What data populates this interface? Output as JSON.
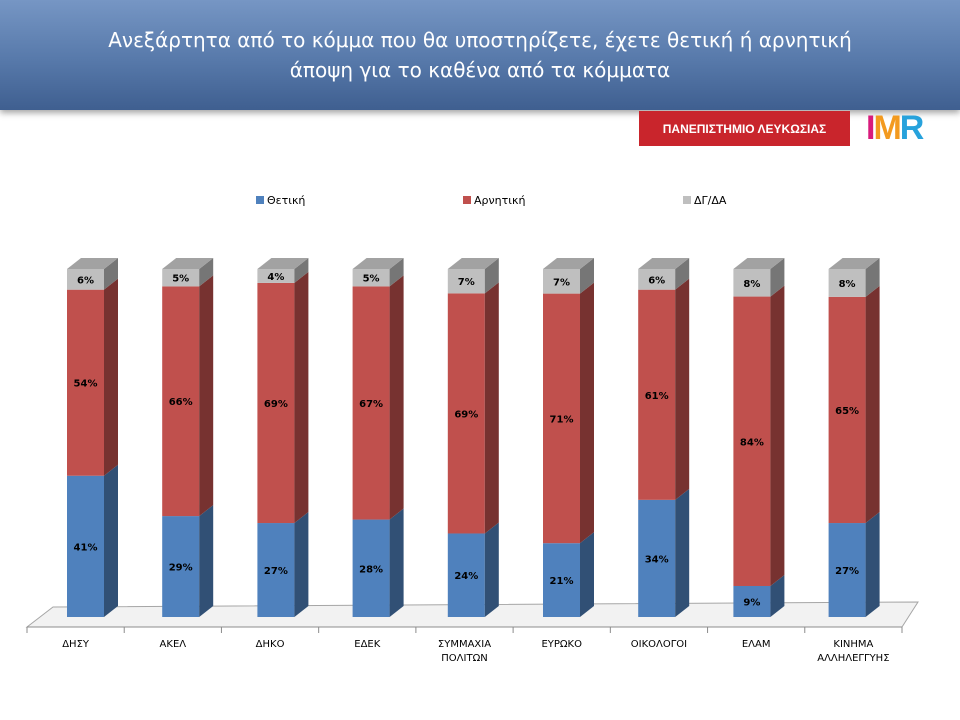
{
  "header": {
    "title_line1": "Ανεξάρτητα από το κόμμα που θα υποστηρίζετε, έχετε θετική ή αρνητική",
    "title_line2": "άποψη για το καθένα από τα κόμματα"
  },
  "logos": {
    "university": "ΠΑΝΕΠΙΣΤΗΜΙΟ ΛΕΥΚΩΣΙΑΣ",
    "imr": "IMR"
  },
  "chart_data": {
    "type": "bar",
    "stacked": true,
    "percent_stacked": true,
    "three_d": true,
    "categories": [
      [
        "ΔΗΣΥ"
      ],
      [
        "ΑΚΕΛ"
      ],
      [
        "ΔΗΚΟ"
      ],
      [
        "ΕΔΕΚ"
      ],
      [
        "ΣΥΜΜΑΧΙΑ",
        "ΠΟΛΙΤΩΝ"
      ],
      [
        "ΕΥΡΩΚΟ"
      ],
      [
        "ΟΙΚΟΛΟΓΟΙ"
      ],
      [
        "ΕΛΑΜ"
      ],
      [
        "ΚΙΝΗΜΑ",
        "ΑΛΛΗΛΕΓΓΥΗΣ"
      ]
    ],
    "series": [
      {
        "name": "Θετική",
        "color": "#4f81bd",
        "values": [
          41,
          29,
          27,
          28,
          24,
          21,
          34,
          9,
          27
        ]
      },
      {
        "name": "Αρνητική",
        "color": "#c0504d",
        "values": [
          54,
          66,
          69,
          67,
          69,
          71,
          61,
          84,
          65
        ]
      },
      {
        "name": "ΔΓ/ΔΑ",
        "color": "#bfbfbf",
        "values": [
          6,
          5,
          4,
          5,
          7,
          7,
          6,
          8,
          8
        ]
      }
    ],
    "value_suffix": "%",
    "legend_position": "top",
    "grid": false
  }
}
